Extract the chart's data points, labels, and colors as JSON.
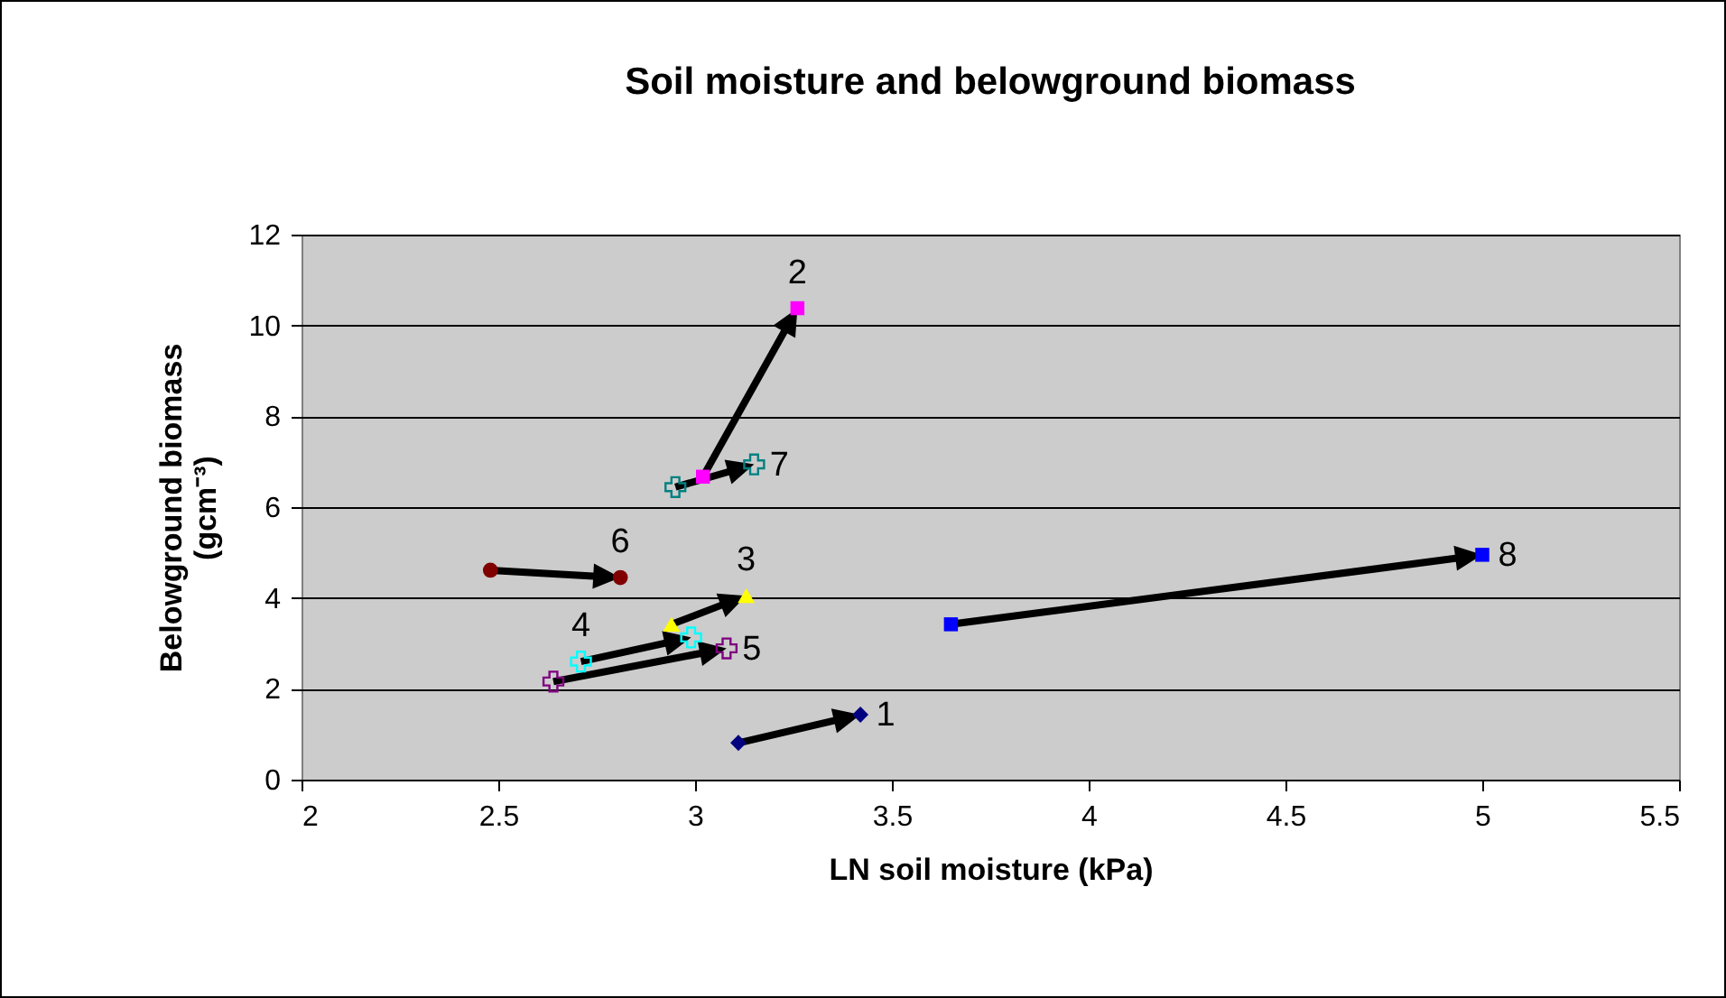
{
  "chart_data": {
    "type": "scatter",
    "title": "Soil moisture and belowground biomass",
    "xlabel": "LN soil moisture (kPa)",
    "ylabel": "Belowground biomass (gcm⁻³)",
    "xlim": [
      2,
      5.5
    ],
    "xticks": [
      2,
      2.5,
      3,
      3.5,
      4,
      4.5,
      5,
      5.5
    ],
    "ylim": [
      0,
      12
    ],
    "yticks": [
      0,
      2,
      4,
      6,
      8,
      10,
      12
    ],
    "grid": "y",
    "series": [
      {
        "name": "1",
        "color": "#000080",
        "marker": "diamond",
        "x": [
          3.11,
          3.42
        ],
        "values": [
          0.81,
          1.43
        ]
      },
      {
        "name": "2",
        "color": "#ff00ff",
        "marker": "square",
        "x": [
          3.02,
          3.26
        ],
        "values": [
          6.67,
          10.38
        ]
      },
      {
        "name": "3",
        "color": "#ffff00",
        "marker": "triangle",
        "x": [
          2.94,
          3.13
        ],
        "values": [
          3.42,
          4.05
        ]
      },
      {
        "name": "4",
        "color": "#00ffff",
        "marker": "cross",
        "x": [
          2.71,
          2.99
        ],
        "values": [
          2.6,
          3.13
        ]
      },
      {
        "name": "5",
        "color": "#800080",
        "marker": "cross",
        "x": [
          2.64,
          3.08
        ],
        "values": [
          2.16,
          2.89
        ]
      },
      {
        "name": "6",
        "color": "#800000",
        "marker": "circle",
        "x": [
          2.48,
          2.81
        ],
        "values": [
          4.61,
          4.45
        ]
      },
      {
        "name": "7",
        "color": "#008080",
        "marker": "cross",
        "x": [
          2.95,
          3.15
        ],
        "values": [
          6.44,
          6.94
        ]
      },
      {
        "name": "8",
        "color": "#0000ff",
        "marker": "square",
        "x": [
          3.65,
          5.0
        ],
        "values": [
          3.42,
          4.95
        ]
      }
    ]
  }
}
